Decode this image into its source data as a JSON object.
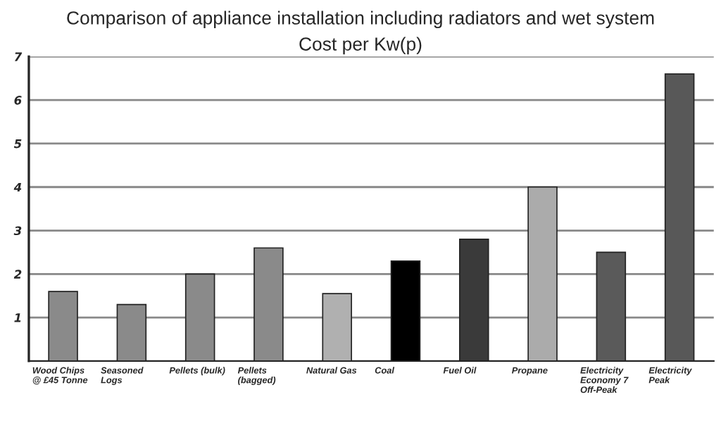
{
  "chart_data": {
    "type": "bar",
    "title": "Comparison of appliance installation including radiators and wet system",
    "subtitle": "Cost per Kw(p)",
    "categories": [
      "Wood Chips\n@ £45 Tonne",
      "Seasoned\nLogs",
      "Pellets (bulk)",
      "Pellets\n(bagged)",
      "Natural Gas",
      "Coal",
      "Fuel Oil",
      "Propane",
      "Electricity\nEconomy 7\nOff-Peak",
      "Electricity\nPeak"
    ],
    "values": [
      1.6,
      1.3,
      2.0,
      2.6,
      1.55,
      2.3,
      2.8,
      4.0,
      2.5,
      6.6
    ],
    "colors": [
      "#8a8a8a",
      "#8a8a8a",
      "#8a8a8a",
      "#8a8a8a",
      "#b0b0b0",
      "#000000",
      "#3a3a3a",
      "#ababab",
      "#5a5a5a",
      "#585858"
    ],
    "ylim": [
      0,
      7
    ],
    "yticks": [
      1,
      2,
      3,
      4,
      5,
      6,
      7
    ],
    "grid": "y"
  }
}
